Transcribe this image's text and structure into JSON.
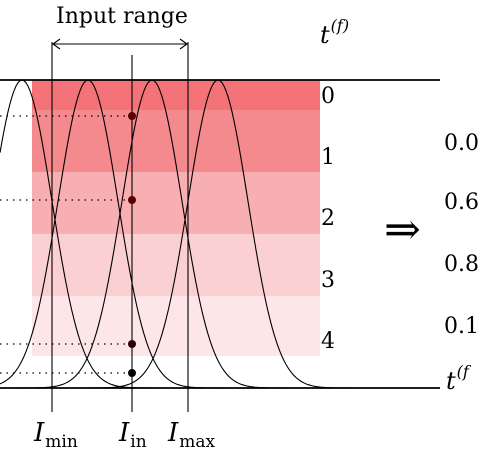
{
  "header": {
    "input_range_label": "Input range"
  },
  "axis_labels": {
    "t_symbol": "t",
    "t_superscript": "(f)",
    "t_bottom_symbol": "t",
    "t_bottom_superscript": "(f"
  },
  "levels": [
    "0",
    "1",
    "2",
    "3",
    "4"
  ],
  "arrow_symbol": "⇒",
  "output_values": [
    "0.0",
    "0.6",
    "0.8",
    "0.1"
  ],
  "x_markers": {
    "i_min": {
      "symbol": "I",
      "sub": "min"
    },
    "i_in": {
      "symbol": "I",
      "sub": "in"
    },
    "i_max": {
      "symbol": "I",
      "sub": "max"
    }
  },
  "colors": {
    "band_base": "#ee1c24",
    "line": "#000000",
    "point": "#5a0000"
  }
}
